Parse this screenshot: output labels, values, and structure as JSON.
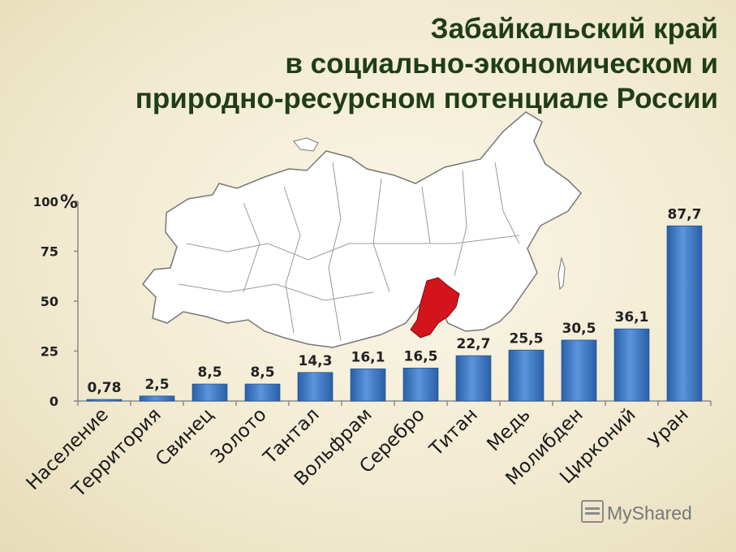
{
  "title_lines": [
    "Забайкальский край",
    "в социально-экономическом и",
    "природно-ресурсном потенциале России"
  ],
  "watermark": "MyShared",
  "colors": {
    "bar": "#3b78c4",
    "title": "#1f3d17",
    "region_highlight": "#d4141b"
  },
  "chart_data": {
    "type": "bar",
    "title": "Забайкальский край в социально-экономическом и природно-ресурсном потенциале России",
    "ylabel": "%",
    "ylim": [
      0,
      100
    ],
    "yticks": [
      0,
      25,
      50,
      75,
      100
    ],
    "grid": false,
    "categories": [
      "Население",
      "Территория",
      "Свинец",
      "Золото",
      "Тантал",
      "Вольфрам",
      "Серебро",
      "Титан",
      "Медь",
      "Молибден",
      "Цирконий",
      "Уран"
    ],
    "values": [
      0.78,
      2.5,
      8.5,
      8.5,
      14.3,
      16.1,
      16.5,
      22.7,
      25.5,
      30.5,
      36.1,
      87.7
    ],
    "value_labels": [
      "0,78",
      "2,5",
      "8,5",
      "8,5",
      "14,3",
      "16,1",
      "16,5",
      "22,7",
      "25,5",
      "30,5",
      "36,1",
      "87,7"
    ]
  }
}
